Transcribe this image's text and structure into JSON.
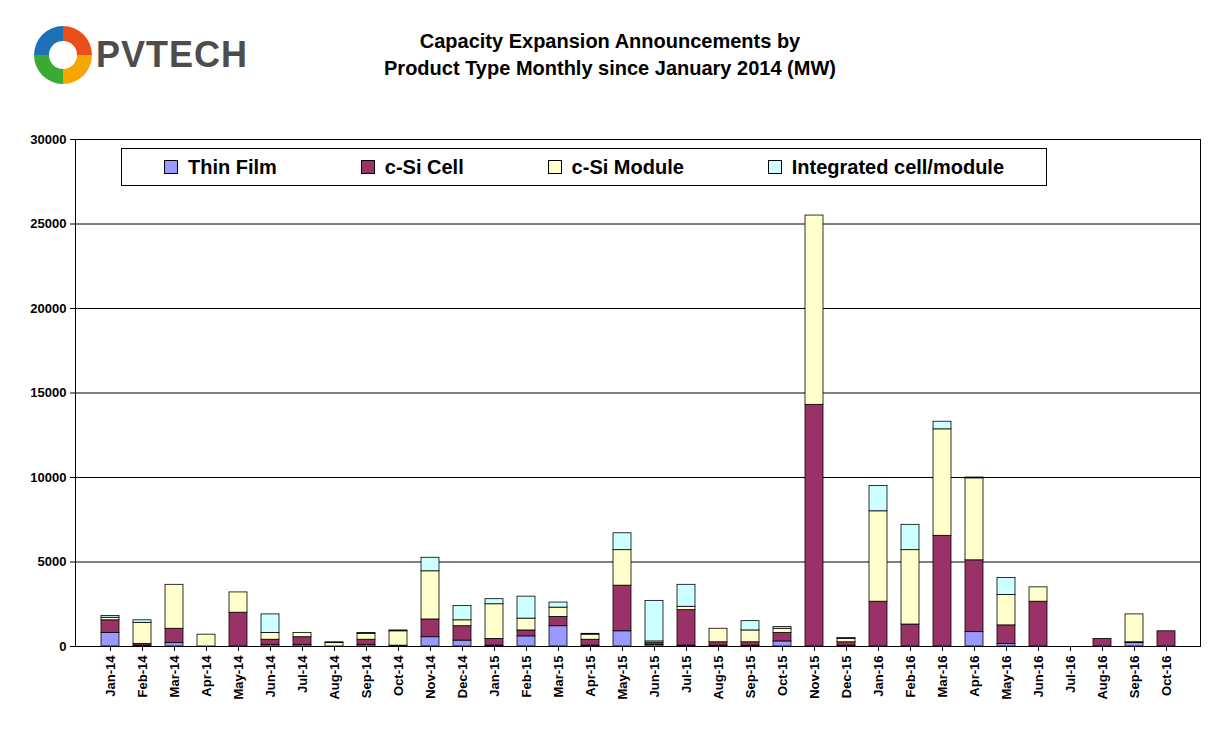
{
  "chart_data": {
    "type": "bar",
    "title": "Capacity Expansion Announcements by\nProduct Type Monthly since January 2014 (MW)",
    "annotations": [
      "PVTECH"
    ],
    "stacked": true,
    "grid": true,
    "legend": "top",
    "categories": [
      "Jan-14",
      "Feb-14",
      "Mar-14",
      "Apr-14",
      "May-14",
      "Jun-14",
      "Jul-14",
      "Aug-14",
      "Sep-14",
      "Oct-14",
      "Nov-14",
      "Dec-14",
      "Jan-15",
      "Feb-15",
      "Mar-15",
      "Apr-15",
      "May-15",
      "Jun-15",
      "Jul-15",
      "Aug-15",
      "Sep-15",
      "Oct-15",
      "Nov-15",
      "Dec-15",
      "Jan-16",
      "Feb-16",
      "Mar-16",
      "Apr-16",
      "May-16",
      "Jun-16",
      "Jul-16",
      "Aug-16",
      "Sep-16",
      "Oct-16"
    ],
    "series": [
      {
        "name": "Thin Film",
        "color": "#9999ff",
        "values": [
          800,
          50,
          200,
          0,
          0,
          100,
          100,
          0,
          100,
          0,
          550,
          350,
          50,
          600,
          1200,
          50,
          900,
          100,
          50,
          50,
          50,
          300,
          0,
          50,
          0,
          0,
          0,
          850,
          150,
          0,
          0,
          0,
          200,
          0
        ]
      },
      {
        "name": "c-Si Cell",
        "color": "#993366",
        "values": [
          750,
          100,
          850,
          0,
          2000,
          300,
          450,
          0,
          300,
          50,
          1050,
          850,
          400,
          350,
          550,
          350,
          2700,
          100,
          2100,
          200,
          200,
          500,
          14300,
          200,
          2650,
          1300,
          6550,
          4250,
          1100,
          2650,
          0,
          450,
          50,
          900
        ]
      },
      {
        "name": "c-Si Module",
        "color": "#ffffcc",
        "values": [
          150,
          1250,
          2600,
          700,
          1200,
          400,
          250,
          200,
          350,
          850,
          2850,
          350,
          2050,
          700,
          550,
          300,
          2100,
          100,
          200,
          800,
          700,
          250,
          11200,
          200,
          5350,
          4400,
          6300,
          4850,
          1800,
          850,
          0,
          0,
          1650,
          0
        ]
      },
      {
        "name": "Integrated cell/module",
        "color": "#ccffff",
        "values": [
          100,
          150,
          0,
          0,
          0,
          1100,
          0,
          50,
          50,
          50,
          800,
          850,
          300,
          1300,
          300,
          50,
          1000,
          2400,
          1300,
          0,
          550,
          100,
          0,
          50,
          1500,
          1500,
          450,
          50,
          1000,
          0,
          0,
          0,
          0,
          0
        ]
      }
    ],
    "ylim": [
      0,
      30000
    ],
    "yticks": [
      0,
      5000,
      10000,
      15000,
      20000,
      25000,
      30000
    ]
  }
}
